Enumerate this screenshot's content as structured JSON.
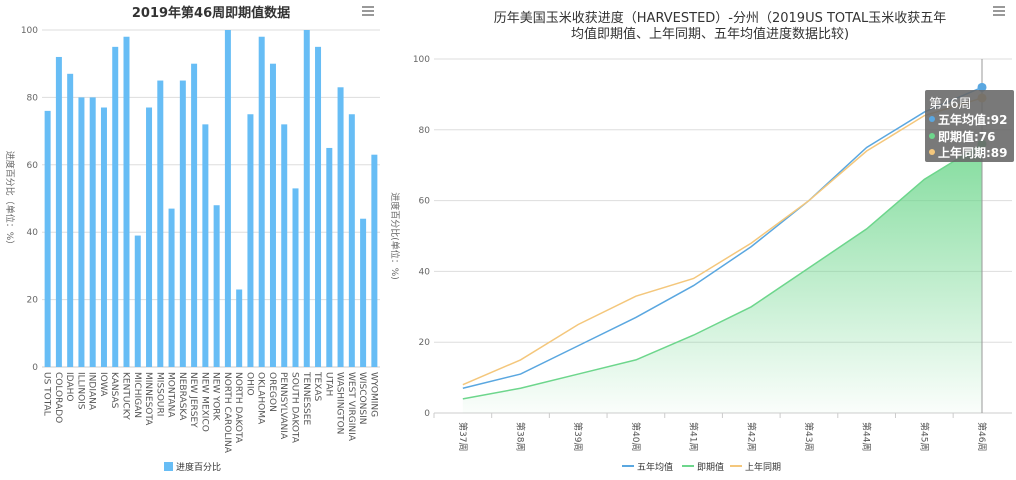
{
  "chart_data": [
    {
      "type": "bar",
      "title": "2019年第46周即期值数据",
      "ylabel": "进度百分比（单位：%）",
      "xlabel": "",
      "ylim": [
        0,
        100
      ],
      "yticks": [
        "0",
        "20",
        "40",
        "60",
        "80",
        "100"
      ],
      "grid": true,
      "legend": [
        "进度百分比"
      ],
      "legend_position": "bottom",
      "color": "#67bdf5",
      "categories": [
        "US TOTAL",
        "COLORADO",
        "IDAHO",
        "ILLINOIS",
        "INDIANA",
        "IOWA",
        "KANSAS",
        "KENTUCKY",
        "MICHIGAN",
        "MINNESOTA",
        "MISSOURI",
        "MONTANA",
        "NEBRASKA",
        "NEW JERSEY",
        "NEW MEXICO",
        "NEW YORK",
        "NORTH CAROLINA",
        "NORTH DAKOTA",
        "OHIO",
        "OKLAHOMA",
        "OREGON",
        "PENNSYLVANIA",
        "SOUTH DAKOTA",
        "TENNESSEE",
        "TEXAS",
        "UTAH",
        "WASHINGTON",
        "WEST VIRGINIA",
        "WISCONSIN",
        "WYOMING"
      ],
      "values": [
        76,
        92,
        87,
        80,
        80,
        77,
        95,
        98,
        39,
        77,
        85,
        47,
        85,
        90,
        72,
        48,
        100,
        23,
        75,
        98,
        90,
        72,
        53,
        100,
        95,
        65,
        83,
        75,
        44,
        63
      ]
    },
    {
      "type": "line",
      "title_lines": [
        "历年美国玉米收获进度（HARVESTED）-分州（2019US TOTAL玉米收获五年",
        "均值即期值、上年同期、五年均值进度数据比较)"
      ],
      "ylabel": "进度百分比(单位：%)",
      "ylim": [
        0,
        100
      ],
      "yticks": [
        "0",
        "20",
        "40",
        "60",
        "80",
        "100"
      ],
      "grid": true,
      "legend_position": "bottom",
      "categories": [
        "第37周",
        "第38周",
        "第39周",
        "第40周",
        "第41周",
        "第42周",
        "第43周",
        "第44周",
        "第45周",
        "第46周"
      ],
      "series": [
        {
          "name": "五年均值",
          "color": "#5aa7e0",
          "values": [
            7,
            11,
            19,
            27,
            36,
            47,
            60,
            75,
            85,
            92
          ]
        },
        {
          "name": "即期值",
          "color": "#6dd68c",
          "values": [
            4,
            7,
            11,
            15,
            22,
            30,
            41,
            52,
            66,
            76
          ],
          "area": true
        },
        {
          "name": "上年同期",
          "color": "#f4c77c",
          "values": [
            8,
            15,
            25,
            33,
            38,
            48,
            60,
            74,
            84,
            89
          ]
        }
      ],
      "tooltip": {
        "title": "第46周",
        "rows": [
          "五年均值:92",
          "即期值:76",
          "上年同期:89"
        ]
      }
    }
  ]
}
